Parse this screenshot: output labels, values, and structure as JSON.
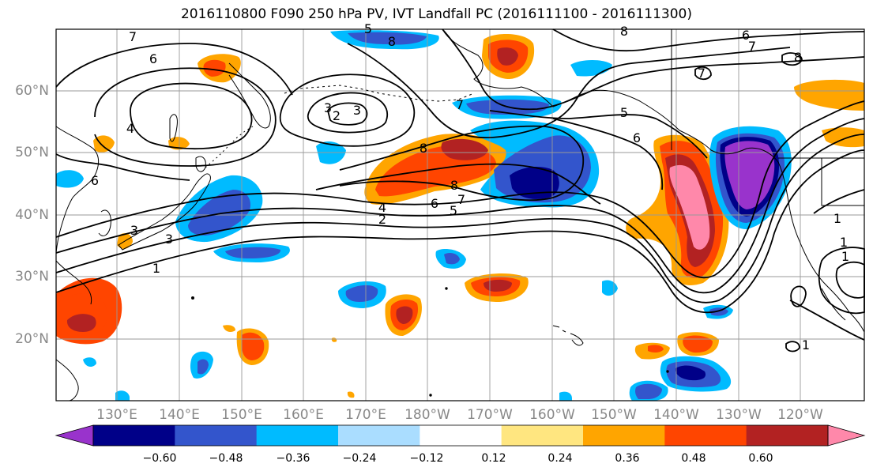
{
  "title": "2016110800 F090 250 hPa PV, IVT Landfall PC (2016111100 - 2016111300)",
  "lat_labels": [
    "60°N",
    "50°N",
    "40°N",
    "30°N",
    "20°N"
  ],
  "lon_labels": [
    "130°E",
    "140°E",
    "150°E",
    "160°E",
    "170°E",
    "180°W",
    "170°W",
    "160°W",
    "150°W",
    "140°W",
    "130°W",
    "120°W"
  ],
  "colorbar": {
    "colors": [
      "#9933cc",
      "#000088",
      "#3355cc",
      "#00bbff",
      "#aaddff",
      "#ffffff",
      "#ffe680",
      "#ffa500",
      "#ff4500",
      "#b22222",
      "#ff88aa"
    ],
    "ticks": [
      "−0.60",
      "−0.48",
      "−0.36",
      "−0.24",
      "−0.12",
      "0.12",
      "0.24",
      "0.36",
      "0.48",
      "0.60"
    ]
  },
  "contour_labels": [
    "7",
    "6",
    "4",
    "8",
    "5",
    "3",
    "2",
    "3",
    "8",
    "7",
    "6",
    "5",
    "4",
    "2",
    "8",
    "7",
    "6",
    "5",
    "7",
    "8",
    "6",
    "1",
    "6",
    "7",
    "8",
    "3",
    "1",
    "3",
    "1",
    "1",
    "1"
  ],
  "anomaly_fields": [
    {
      "sign": "positive",
      "level": 0.36,
      "place": "northwestern Pacific near 130°E, 25°N"
    },
    {
      "sign": "positive",
      "level": 0.36,
      "place": "North Pacific near 170°E–170°W, 45°N"
    },
    {
      "sign": "negative",
      "level": -0.6,
      "place": "central North Pacific near 160°W, 43°N"
    },
    {
      "sign": "positive",
      "level": 0.6,
      "place": "northeastern Pacific near 137°W, 43°N"
    },
    {
      "sign": "negative",
      "level": -0.6,
      "place": "off the Pacific Northwest coast near 127°W, 45°N"
    },
    {
      "sign": "negative",
      "level": -0.36,
      "place": "Bering Sea and southern Alaska"
    }
  ]
}
